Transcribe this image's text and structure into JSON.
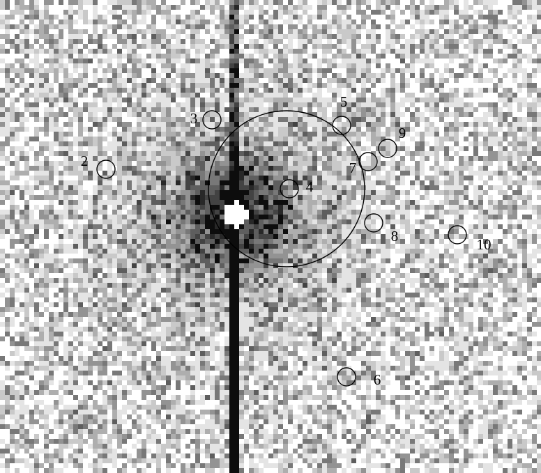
{
  "sources": [
    {
      "label": "2"
    },
    {
      "label": "3"
    },
    {
      "label": "4"
    },
    {
      "label": "5"
    },
    {
      "label": "6"
    },
    {
      "label": "7"
    },
    {
      "label": "8"
    },
    {
      "label": "9"
    },
    {
      "label": "10"
    }
  ]
}
